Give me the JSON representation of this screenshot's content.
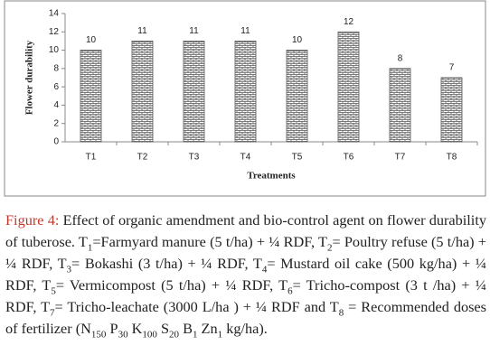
{
  "chart_data": {
    "type": "bar",
    "xlabel": "Treatments",
    "ylabel": "Flower durability",
    "categories": [
      "T1",
      "T2",
      "T3",
      "T4",
      "T5",
      "T6",
      "T7",
      "T8"
    ],
    "values": [
      10,
      11,
      11,
      11,
      10,
      12,
      8,
      7
    ],
    "color": "#555555",
    "ylim": [
      0,
      14
    ],
    "yticks": [
      0,
      2,
      4,
      6,
      8,
      10,
      12,
      14
    ],
    "grid": false
  },
  "caption": {
    "label": "Figure 4:",
    "parts": [
      "Effect of organic amendment and bio-control agent on flower durability of tuberose. T",
      {
        "sub": "1"
      },
      "=Farmyard manure (5 t/ha) + ¼ RDF, T",
      {
        "sub": "2"
      },
      "= Poultry refuse (5 t/ha) + ¼ RDF, T",
      {
        "sub": "3"
      },
      "= Bokashi (3 t/ha) + ¼ RDF, T",
      {
        "sub": "4"
      },
      "= Mustard oil cake (500 kg/ha) + ¼ RDF, T",
      {
        "sub": "5"
      },
      "= Vermicompost (5 t/ha) + ¼ RDF, T",
      {
        "sub": "6"
      },
      "= Tricho-compost (3 t /ha) + ¼ RDF, T",
      {
        "sub": "7"
      },
      "= Tricho-leachate (3000 L/ha ) + ¼ RDF and T",
      {
        "sub": "8"
      },
      " = Recommended doses of fertilizer (N",
      {
        "sub": "150"
      },
      " P",
      {
        "sub": "30"
      },
      " K",
      {
        "sub": "100"
      },
      " S",
      {
        "sub": "20"
      },
      " B",
      {
        "sub": "1"
      },
      " Zn",
      {
        "sub": "1"
      },
      " kg/ha)."
    ]
  }
}
